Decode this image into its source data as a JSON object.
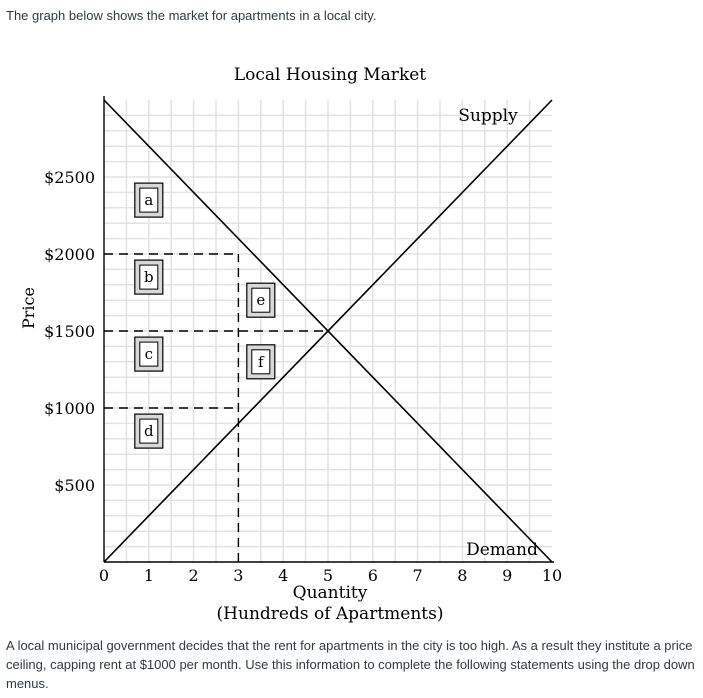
{
  "question": {
    "intro": "The graph below shows the market for apartments in a local city.",
    "outro": "A local municipal government decides that the rent for apartments in the city is too high.  As a result they institute a price ceiling, capping rent at $1000 per month.  Use this information to complete the following statements using the drop down menus."
  },
  "chart_data": {
    "type": "line",
    "title": "Local Housing Market",
    "xlabel": "Quantity",
    "xlabel2": "(Hundreds of Apartments)",
    "ylabel": "Price",
    "xlim": [
      0,
      10
    ],
    "ylim": [
      0,
      3000
    ],
    "x_ticks": [
      0,
      1,
      2,
      3,
      4,
      5,
      6,
      7,
      8,
      9,
      10
    ],
    "y_ticks": [
      {
        "value": 500,
        "label": "$500"
      },
      {
        "value": 1000,
        "label": "$1000"
      },
      {
        "value": 1500,
        "label": "$1500"
      },
      {
        "value": 2000,
        "label": "$2000"
      },
      {
        "value": 2500,
        "label": "$2500"
      }
    ],
    "grid": true,
    "series": [
      {
        "name": "Supply",
        "x": [
          0,
          10
        ],
        "y": [
          0,
          3000
        ],
        "color": "#000000"
      },
      {
        "name": "Demand",
        "x": [
          0,
          10
        ],
        "y": [
          3000,
          0
        ],
        "color": "#000000"
      }
    ],
    "reference_lines": [
      {
        "from": [
          0,
          2000
        ],
        "to": [
          3,
          2000
        ]
      },
      {
        "from": [
          0,
          1500
        ],
        "to": [
          5,
          1500
        ]
      },
      {
        "from": [
          0,
          1000
        ],
        "to": [
          3,
          1000
        ]
      },
      {
        "from": [
          3,
          0
        ],
        "to": [
          3,
          2000
        ]
      }
    ],
    "area_labels": [
      {
        "label": "a",
        "x": 1,
        "y": 2350
      },
      {
        "label": "b",
        "x": 1,
        "y": 1850
      },
      {
        "label": "c",
        "x": 1,
        "y": 1350
      },
      {
        "label": "d",
        "x": 1,
        "y": 850
      },
      {
        "label": "e",
        "x": 3.5,
        "y": 1700
      },
      {
        "label": "f",
        "x": 3.5,
        "y": 1300
      }
    ]
  }
}
